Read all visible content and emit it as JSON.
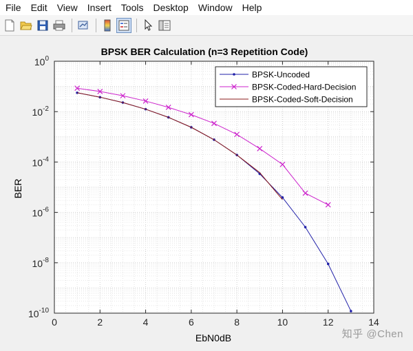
{
  "menu": [
    "File",
    "Edit",
    "View",
    "Insert",
    "Tools",
    "Desktop",
    "Window",
    "Help"
  ],
  "toolbar": {
    "buttons": [
      "new-figure-icon",
      "open-folder-icon",
      "save-icon",
      "print-icon",
      "link-plot-icon",
      "colorbar-icon",
      "legend-icon",
      "pointer-icon",
      "property-editor-icon"
    ],
    "active": "legend-icon"
  },
  "watermark": "知乎 @Chen",
  "chart_data": {
    "type": "line",
    "title": "BPSK BER Calculation (n=3 Repetition Code)",
    "xlabel": "EbN0dB",
    "ylabel": "BER",
    "xlim": [
      0,
      14
    ],
    "ylim_exp": [
      -10,
      0
    ],
    "yscale": "log",
    "grid": "major and minor",
    "legend_position": "top-right",
    "xticks": [
      "0",
      "2",
      "4",
      "6",
      "8",
      "10",
      "12",
      "14"
    ],
    "yticks": [
      {
        "base": "10",
        "exp": "0"
      },
      {
        "base": "10",
        "exp": "-2"
      },
      {
        "base": "10",
        "exp": "-4"
      },
      {
        "base": "10",
        "exp": "-6"
      },
      {
        "base": "10",
        "exp": "-8"
      },
      {
        "base": "10",
        "exp": "-10"
      }
    ],
    "series": [
      {
        "name": "BPSK-Uncoded",
        "color": "#1f1fa8",
        "marker": "dot",
        "x": [
          1,
          2,
          3,
          4,
          5,
          6,
          7,
          8,
          9,
          10,
          11,
          12,
          13
        ],
        "y": [
          0.0562,
          0.0375,
          0.0229,
          0.0125,
          0.00595,
          0.00239,
          0.00077,
          0.000191,
          3.4e-05,
          3.9e-06,
          2.6e-07,
          9e-09,
          1.2e-10
        ]
      },
      {
        "name": "BPSK-Coded-Hard-Decision",
        "color": "#cc22cc",
        "marker": "x",
        "x": [
          1,
          2,
          3,
          4,
          5,
          6,
          7,
          8,
          9,
          10,
          11,
          12
        ],
        "y": [
          0.085,
          0.0632,
          0.0427,
          0.0263,
          0.0148,
          0.0076,
          0.0034,
          0.00125,
          0.00034,
          8e-05,
          5.8e-06,
          2e-06
        ]
      },
      {
        "name": "BPSK-Coded-Soft-Decision",
        "color": "#8b1a1a",
        "marker": "none",
        "x": [
          1,
          2,
          3,
          4,
          5,
          6,
          7,
          8,
          9,
          10
        ],
        "y": [
          0.0562,
          0.0375,
          0.0229,
          0.0125,
          0.00595,
          0.00239,
          0.00077,
          0.00019,
          3.8e-05,
          3.2e-06
        ]
      }
    ]
  }
}
